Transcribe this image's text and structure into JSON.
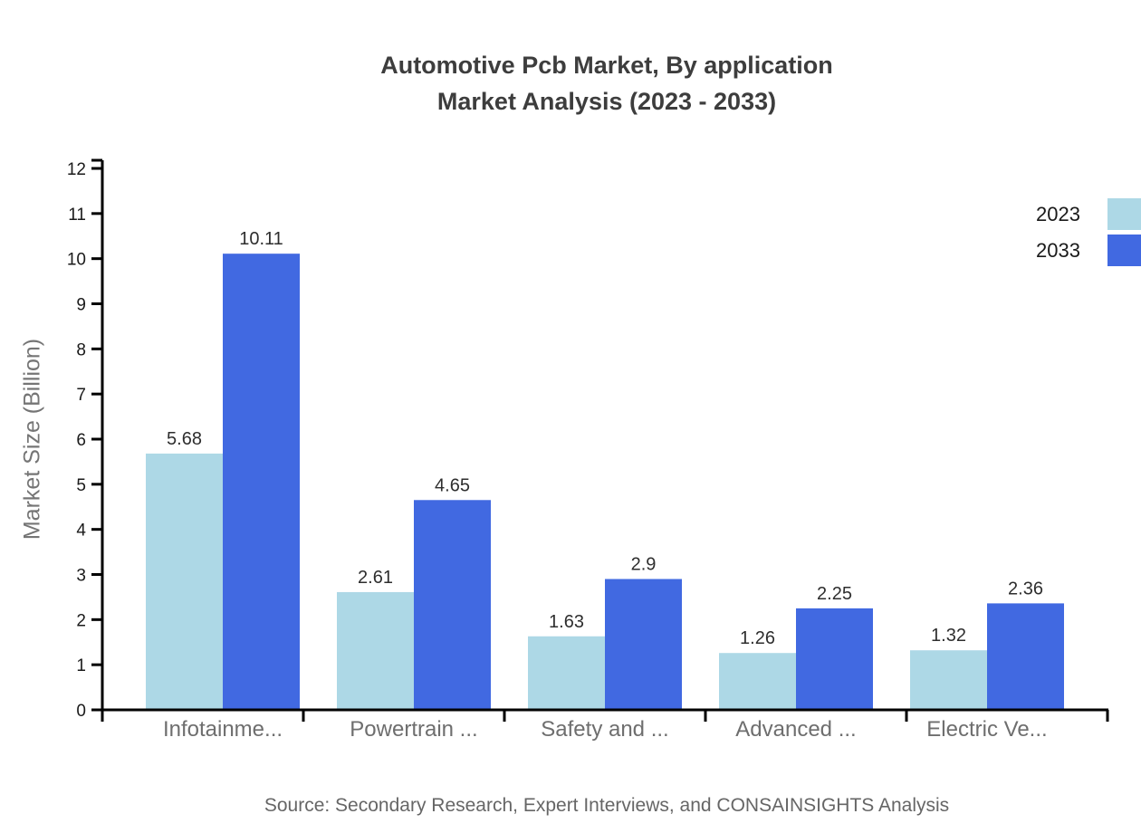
{
  "title": {
    "line1": "Automotive Pcb Market, By application",
    "line2": "Market Analysis (2023 - 2033)"
  },
  "source": "Source: Secondary Research, Expert Interviews, and CONSAINSIGHTS Analysis",
  "colors": {
    "series_2023": "#ADD8E6",
    "series_2033": "#4169E1",
    "axis": "#000000",
    "tick_label_text": "#1a1a1a",
    "value_label_text": "#2e2e2e",
    "category_label_text": "#6e6e6e",
    "title_text": "#3d3d3d",
    "muted_text": "#666666"
  },
  "chart_data": {
    "type": "bar",
    "categories": [
      "Infotainme...",
      "Powertrain ...",
      "Safety and ...",
      "Advanced ...",
      "Electric Ve..."
    ],
    "series": [
      {
        "name": "2023",
        "color": "#ADD8E6",
        "values": [
          5.68,
          2.61,
          1.63,
          1.26,
          1.32
        ]
      },
      {
        "name": "2033",
        "color": "#4169E1",
        "values": [
          10.11,
          4.65,
          2.9,
          2.25,
          2.36
        ]
      }
    ],
    "title": "Automotive Pcb Market, By application Market Analysis (2023 - 2033)",
    "xlabel": "",
    "ylabel": "Market Size (Billion)",
    "ylim": [
      0,
      12
    ],
    "ytick_step": 1,
    "yticks": [
      0,
      1,
      2,
      3,
      4,
      5,
      6,
      7,
      8,
      9,
      10,
      11,
      12
    ],
    "grid": false,
    "value_labels": true,
    "legend_position": "top-right"
  }
}
